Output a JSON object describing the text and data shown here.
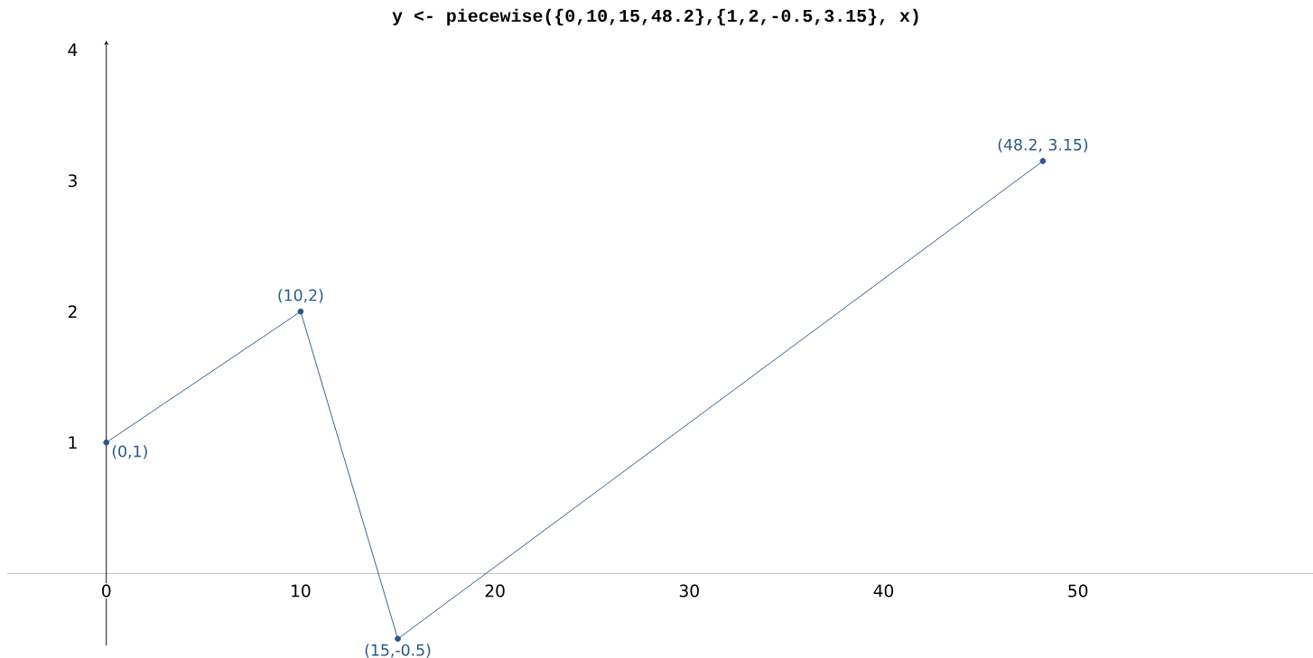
{
  "chart_data": {
    "type": "line",
    "title": "y <- piecewise({0,10,15,48.2},{1,2,-0.5,3.15}, x)",
    "x": [
      0,
      10,
      15,
      48.2
    ],
    "series": [
      {
        "color": "#2b5687",
        "values": [
          1,
          2,
          -0.5,
          3.15
        ]
      }
    ],
    "annotations": [
      {
        "text": "(0,1)",
        "x": 0,
        "y": 1
      },
      {
        "text": "(10,2)",
        "x": 10,
        "y": 2
      },
      {
        "text": "(15,-0.5)",
        "x": 15,
        "y": -0.5
      },
      {
        "text": "(48.2, 3.15)",
        "x": 48.2,
        "y": 3.15
      }
    ],
    "xlim": [
      -5.1,
      62.1
    ],
    "ylim": [
      -0.55,
      4.07
    ],
    "xticks": [
      0,
      10,
      20,
      30,
      40,
      50
    ],
    "yticks": [
      1,
      2,
      3,
      4
    ],
    "marker": "circle",
    "line_style": "solid"
  }
}
